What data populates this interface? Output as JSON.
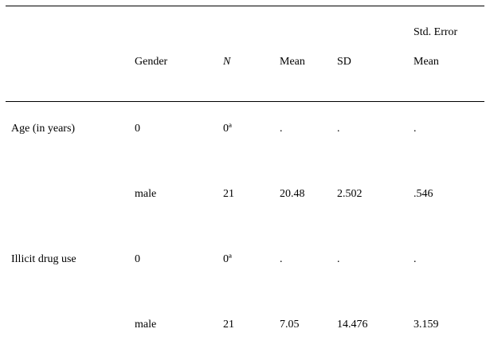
{
  "table": {
    "header": [
      "Gender",
      "N",
      "Mean",
      "SD",
      "Std. Error Mean"
    ],
    "groups": [
      {
        "label": "Age (in years)",
        "rows": [
          [
            "0",
            "0ª",
            ".",
            ".",
            "."
          ],
          [
            "male",
            "21",
            "20.48",
            "2.502",
            ".546"
          ]
        ]
      },
      {
        "label": "Illicit drug use",
        "rows": [
          [
            "0",
            "0ª",
            ".",
            ".",
            "."
          ],
          [
            "male",
            "21",
            "7.05",
            "14.476",
            "3.159"
          ]
        ]
      }
    ]
  }
}
